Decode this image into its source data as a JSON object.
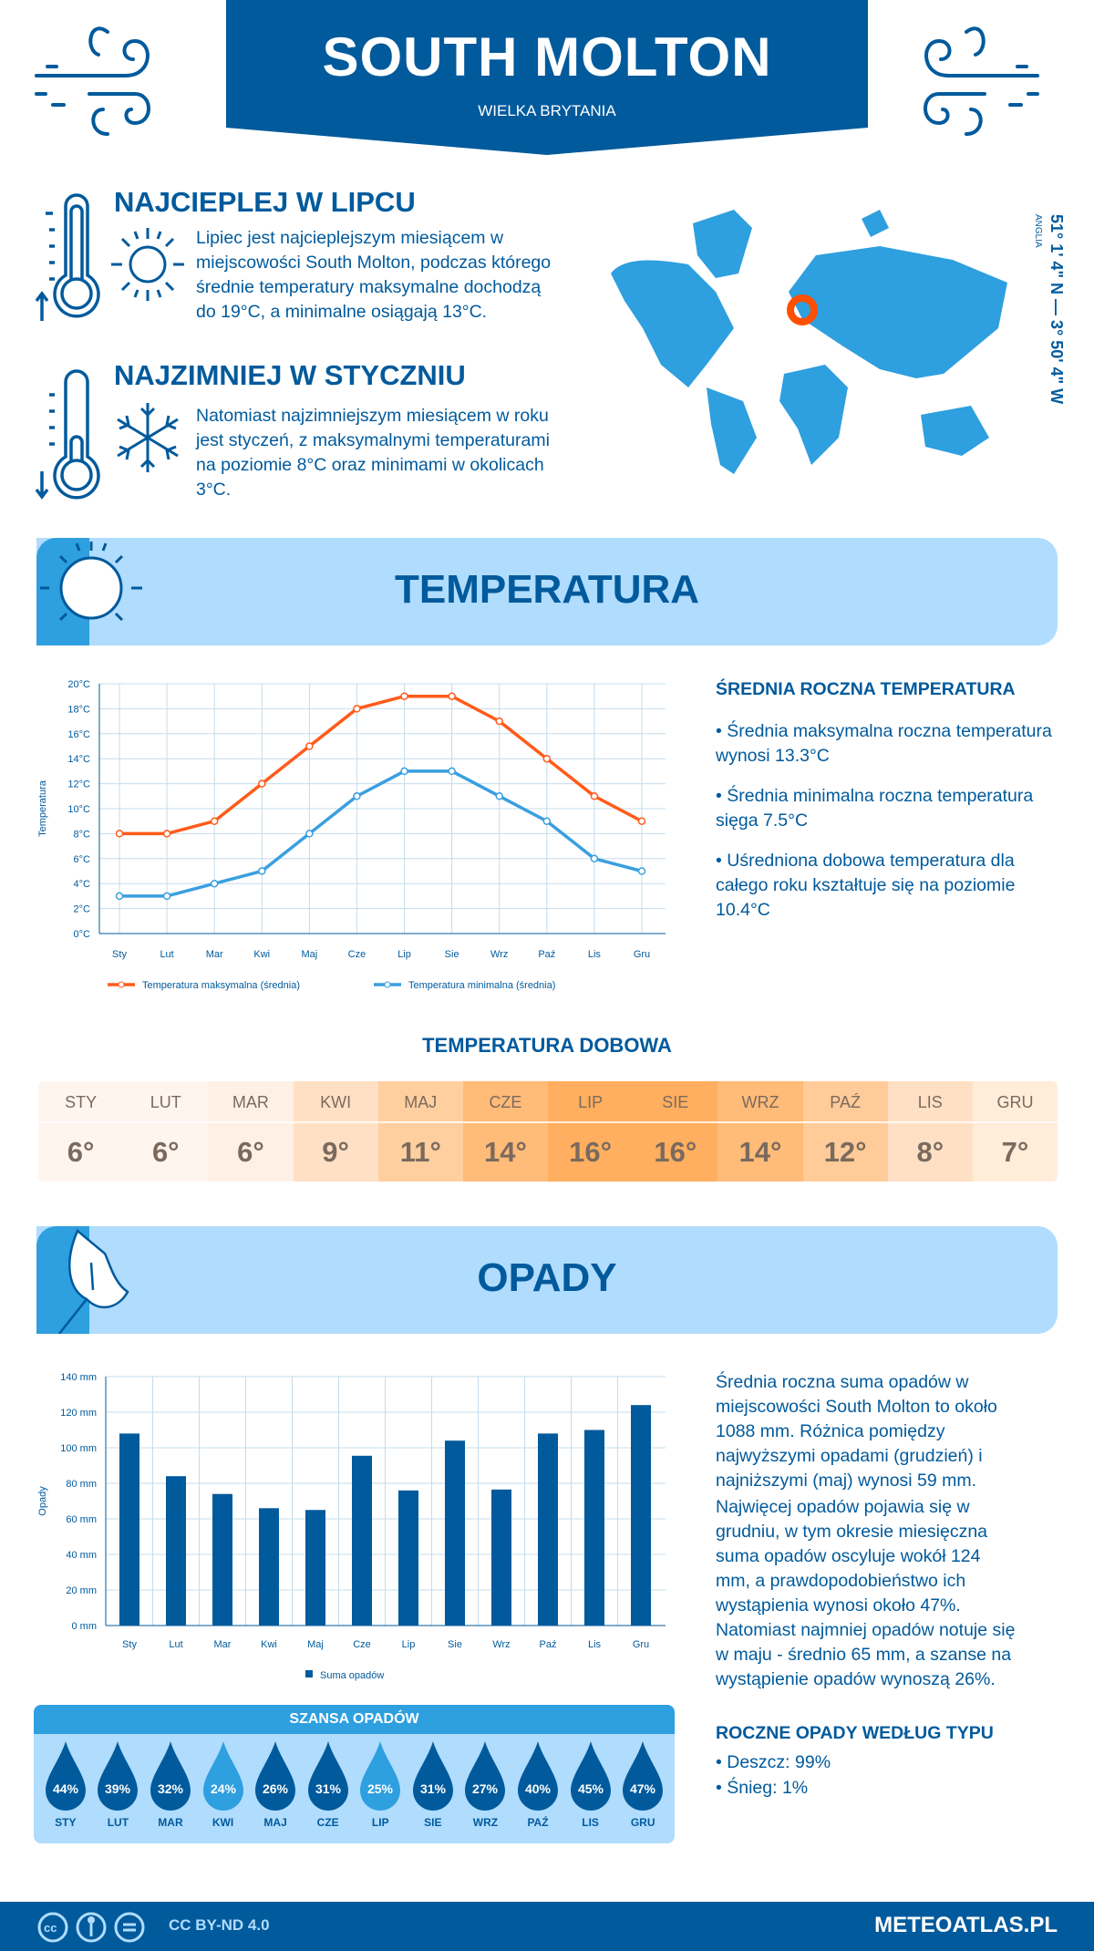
{
  "header": {
    "title": "SOUTH MOLTON",
    "subtitle": "WIELKA BRYTANIA",
    "coords": "51° 1' 4\" N — 3° 50' 4\" W",
    "region": "ANGLIA"
  },
  "warm": {
    "heading": "NAJCIEPLEJ W LIPCU",
    "text": "Lipiec jest najcieplejszym miesiącem w miejscowości South Molton, podczas którego średnie temperatury maksymalne dochodzą do 19°C, a minimalne osiągają 13°C."
  },
  "cold": {
    "heading": "NAJZIMNIEJ W STYCZNIU",
    "text": "Natomiast najzimniejszym miesiącem w roku jest styczeń, z maksymalnymi temperaturami na poziomie 8°C oraz minimami w okolicach 3°C."
  },
  "temp_section": {
    "title": "TEMPERATURA"
  },
  "temp_summary": {
    "heading": "ŚREDNIA ROCZNA TEMPERATURA",
    "bullets": [
      "• Średnia maksymalna roczna temperatura wynosi 13.3°C",
      "• Średnia minimalna roczna temperatura sięga 7.5°C",
      "• Uśredniona dobowa temperatura dla całego roku kształtuje się na poziomie 10.4°C"
    ]
  },
  "daily": {
    "heading": "TEMPERATURA DOBOWA",
    "months": [
      "STY",
      "LUT",
      "MAR",
      "KWI",
      "MAJ",
      "CZE",
      "LIP",
      "SIE",
      "WRZ",
      "PAŹ",
      "LIS",
      "GRU"
    ],
    "values": [
      "6°",
      "6°",
      "6°",
      "9°",
      "11°",
      "14°",
      "16°",
      "16°",
      "14°",
      "12°",
      "8°",
      "7°"
    ],
    "colors": [
      "#fff5ef",
      "#fff5ef",
      "#fff0e6",
      "#ffe0c4",
      "#ffcf9f",
      "#ffbb78",
      "#ffaf5f",
      "#ffaf5f",
      "#ffbb78",
      "#ffcb98",
      "#ffe0c4",
      "#ffecd9"
    ]
  },
  "precip_section": {
    "title": "OPADY"
  },
  "precip_text": {
    "p1": "Średnia roczna suma opadów w miejscowości South Molton to około 1088 mm. Różnica pomiędzy najwyższymi opadami (grudzień) i najniższymi (maj) wynosi 59 mm.",
    "p2": "Najwięcej opadów pojawia się w grudniu, w tym okresie miesięczna suma opadów oscyluje wokół 124 mm, a prawdopodobieństwo ich wystąpienia wynosi około 47%. Natomiast najmniej opadów notuje się w maju - średnio 65 mm, a szanse na wystąpienie opadów wynoszą 26%."
  },
  "chance": {
    "heading": "SZANSA OPADÓW",
    "months": [
      "STY",
      "LUT",
      "MAR",
      "KWI",
      "MAJ",
      "CZE",
      "LIP",
      "SIE",
      "WRZ",
      "PAŹ",
      "LIS",
      "GRU"
    ],
    "values": [
      "44%",
      "39%",
      "32%",
      "24%",
      "26%",
      "31%",
      "25%",
      "31%",
      "27%",
      "40%",
      "45%",
      "47%"
    ],
    "light": [
      false,
      false,
      false,
      true,
      false,
      false,
      true,
      false,
      false,
      false,
      false,
      false
    ]
  },
  "type": {
    "heading": "ROCZNE OPADY WEDŁUG TYPU",
    "rain": "• Deszcz: 99%",
    "snow": "• Śnieg: 1%"
  },
  "footer": {
    "license": "CC BY-ND 4.0",
    "site": "METEOATLAS.PL"
  },
  "colors": {
    "dark": "#005a9c",
    "mid": "#2e9fdf",
    "light": "#b0dcfd",
    "max": "#ff5b1a",
    "min": "#3a9fe0"
  },
  "chart_data": [
    {
      "type": "line",
      "categories": [
        "Sty",
        "Lut",
        "Mar",
        "Kwi",
        "Maj",
        "Cze",
        "Lip",
        "Sie",
        "Wrz",
        "Paź",
        "Lis",
        "Gru"
      ],
      "ylabel": "Temperatura",
      "ylim": [
        0,
        20
      ],
      "yticks": [
        "0°C",
        "2°C",
        "4°C",
        "6°C",
        "8°C",
        "10°C",
        "12°C",
        "14°C",
        "16°C",
        "18°C",
        "20°C"
      ],
      "grid": true,
      "legend": "bottom",
      "series": [
        {
          "name": "Temperatura maksymalna (średnia)",
          "values": [
            8,
            8,
            9,
            12,
            15,
            18,
            19,
            19,
            17,
            14,
            11,
            9
          ]
        },
        {
          "name": "Temperatura minimalna (średnia)",
          "values": [
            3,
            3,
            4,
            5,
            8,
            11,
            13,
            13,
            11,
            9,
            6,
            5
          ]
        }
      ]
    },
    {
      "type": "bar",
      "categories": [
        "Sty",
        "Lut",
        "Mar",
        "Kwi",
        "Maj",
        "Cze",
        "Lip",
        "Sie",
        "Wrz",
        "Paź",
        "Lis",
        "Gru"
      ],
      "ylabel": "Opady",
      "ylim": [
        0,
        140
      ],
      "yticks": [
        "0 mm",
        "20 mm",
        "40 mm",
        "60 mm",
        "80 mm",
        "100 mm",
        "120 mm",
        "140 mm"
      ],
      "grid": true,
      "legend": "bottom",
      "series": [
        {
          "name": "Suma opadów",
          "values": [
            108,
            84,
            74,
            66,
            65,
            95.5,
            76,
            104,
            76.5,
            108,
            110,
            124
          ]
        }
      ]
    }
  ]
}
